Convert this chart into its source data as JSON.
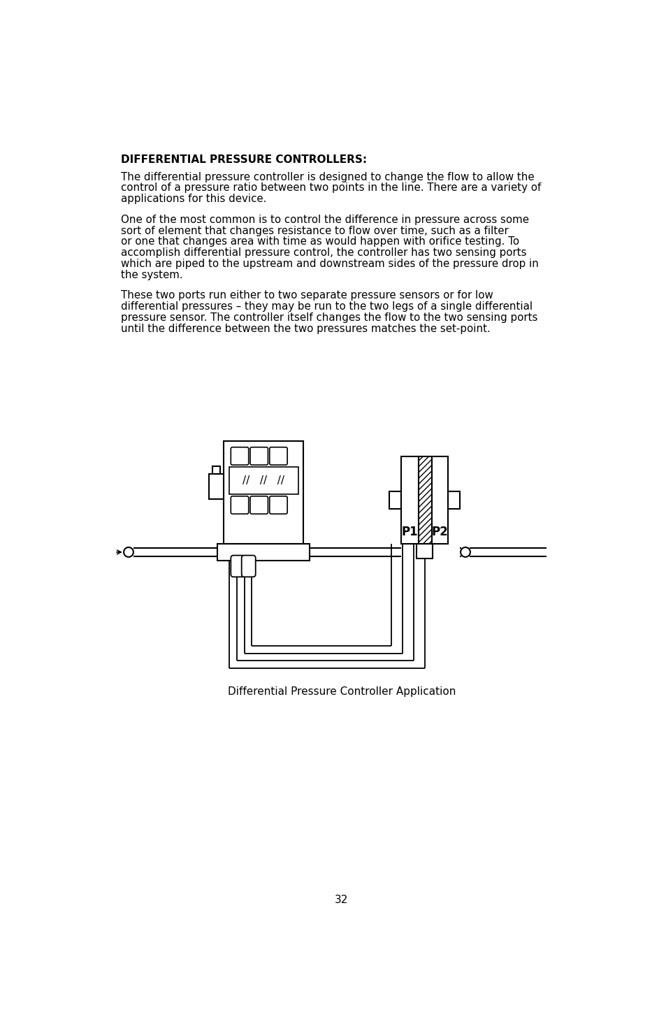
{
  "title": "DIFFERENTIAL PRESSURE CONTROLLERS",
  "paragraph1": "The differential pressure controller is designed to change the flow to allow the\ncontrol of a pressure ratio between two points in the line. There are a variety of\napplications for this device.",
  "paragraph2": "One of the most common is to control the difference in pressure across some\nsort of element that changes resistance to flow over time, such as a filter\nor one that changes area with time as would happen with orifice testing. To\naccomplish differential pressure control, the controller has two sensing ports\nwhich are piped to the upstream and downstream sides of the pressure drop in\nthe system.",
  "paragraph3": "These two ports run either to two separate pressure sensors or for low\ndifferential pressures – they may be run to the two legs of a single differential\npressure sensor. The controller itself changes the flow to the two sensing ports\nuntil the difference between the two pressures matches the set-point.",
  "caption": "Differential Pressure Controller Application",
  "page_number": "32",
  "bg_color": "#ffffff",
  "text_color": "#000000"
}
